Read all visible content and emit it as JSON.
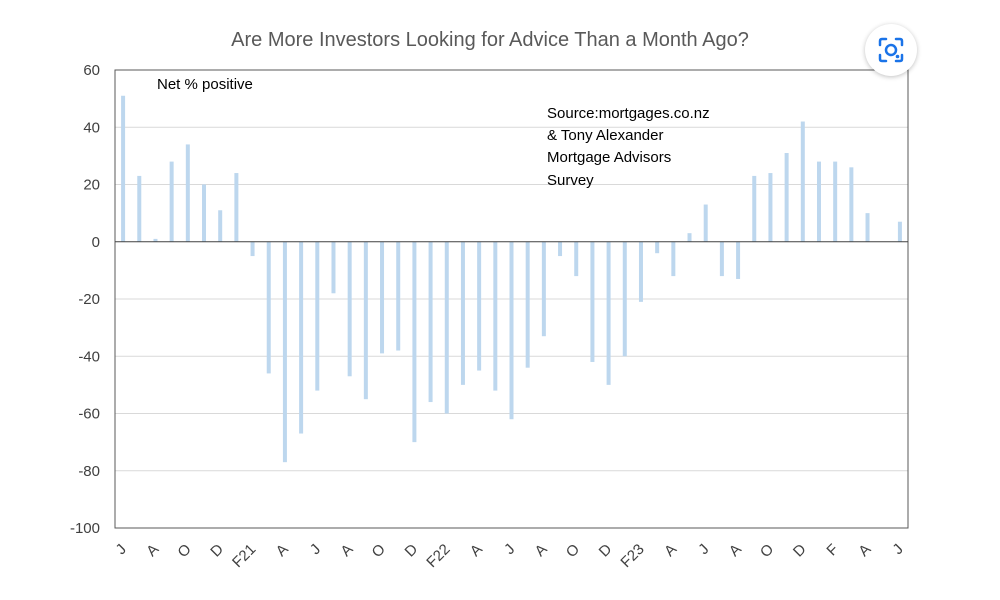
{
  "chart_data": {
    "type": "bar",
    "title": "Are More Investors Looking for Advice Than a Month Ago?",
    "ylim": [
      -100,
      60
    ],
    "yticks": [
      60,
      40,
      20,
      0,
      -20,
      -40,
      -60,
      -80,
      -100
    ],
    "grid": true,
    "annotations": {
      "series_note": "Net % positive",
      "source_lines": [
        "Source:mortgages.co.nz",
        "& Tony Alexander",
        "Mortgage Advisors",
        "Survey"
      ]
    },
    "x_tick_labels": [
      "J",
      "A",
      "O",
      "D",
      "F21",
      "A",
      "J",
      "A",
      "O",
      "D",
      "F22",
      "A",
      "J",
      "A",
      "O",
      "D",
      "F23",
      "A",
      "J",
      "A",
      "O",
      "D",
      "F",
      "A",
      "J"
    ],
    "values": [
      51,
      23,
      1,
      28,
      34,
      20,
      11,
      24,
      -5,
      -46,
      -77,
      -67,
      -52,
      -18,
      -47,
      -55,
      -39,
      -38,
      -70,
      -56,
      -60,
      -50,
      -45,
      -52,
      -62,
      -44,
      -33,
      -5,
      -12,
      -42,
      -50,
      -40,
      -21,
      -4,
      -12,
      3,
      13,
      -12,
      -13,
      23,
      24,
      31,
      42,
      28,
      28,
      26,
      10,
      null,
      7
    ],
    "bar_color": "#bdd7ee"
  },
  "ui": {
    "lens_button_icon": "google-lens-icon"
  }
}
